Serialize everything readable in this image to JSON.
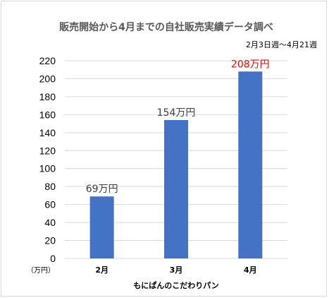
{
  "chart_data": {
    "type": "bar",
    "title": "販売開始から4月までの自社販売実績データ調べ",
    "subtitle": "2月3日週～4月21週",
    "categories": [
      "2月",
      "3月",
      "4月"
    ],
    "values": [
      69,
      154,
      208
    ],
    "data_labels": [
      "69万円",
      "154万円",
      "208万円"
    ],
    "y_unit_label": "（万円）",
    "xlabel": "もにぱんのこだわりパン",
    "ylabel": "",
    "ylim": [
      0,
      220
    ],
    "yticks": [
      0,
      20,
      40,
      60,
      80,
      100,
      120,
      140,
      160,
      180,
      200,
      220
    ],
    "grid": true,
    "legend": "none",
    "colors": {
      "bar": "#4472c4",
      "label_default": "#404040",
      "label_highlight": "#ff0000"
    },
    "highlight_index": 2
  }
}
